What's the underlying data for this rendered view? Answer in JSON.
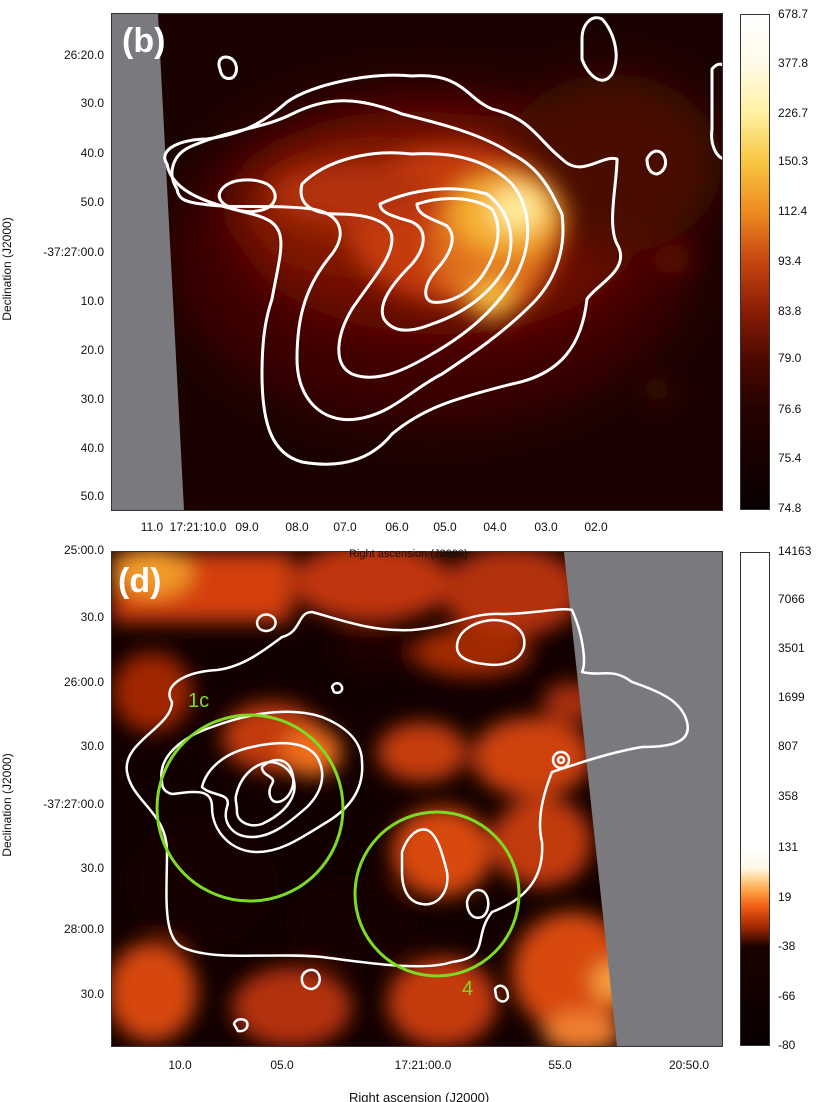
{
  "panels": [
    {
      "label": "(b)",
      "ylabel": "Declination (J2000)",
      "xlabel": "Right ascension (J2000)",
      "yticks": [
        "26:20.0",
        "30.0",
        "40.0",
        "50.0",
        "-37:27:00.0",
        "10.0",
        "20.0",
        "30.0",
        "40.0",
        "50.0"
      ],
      "xticks": [
        "11.0",
        "17:21:10.0",
        "09.0",
        "08.0",
        "07.0",
        "06.0",
        "05.0",
        "04.0",
        "03.0",
        "02.0"
      ],
      "colorbar": [
        "678.7",
        "377.8",
        "226.7",
        "150.3",
        "112.4",
        "93.4",
        "83.8",
        "79.0",
        "76.6",
        "75.4",
        "74.8"
      ],
      "colors": {
        "peak": "#fff3b0",
        "mid": "#e65a10",
        "dark": "#1a0200"
      }
    },
    {
      "label": "(d)",
      "ylabel": "Declination (J2000)",
      "xlabel": "Right ascension (J2000)",
      "yticks": [
        "25:00.0",
        "30.0",
        "26:00.0",
        "30.0",
        "-37:27:00.0",
        "30.0",
        "28:00.0",
        "30.0"
      ],
      "xticks": [
        "10.0",
        "05.0",
        "17:21:00.0",
        "55.0",
        "20:50.0"
      ],
      "colorbar": [
        "14163",
        "7066",
        "3501",
        "1699",
        "807",
        "358",
        "131",
        "19",
        "-38",
        "-66",
        "-80"
      ],
      "regions": [
        "1c",
        "4"
      ],
      "colors": {
        "region": "#7ddc22",
        "emission": "#f05a14",
        "dark": "#120000"
      }
    }
  ],
  "colors": {
    "mask": "#7a7a7e",
    "contour": "#ffffff"
  }
}
